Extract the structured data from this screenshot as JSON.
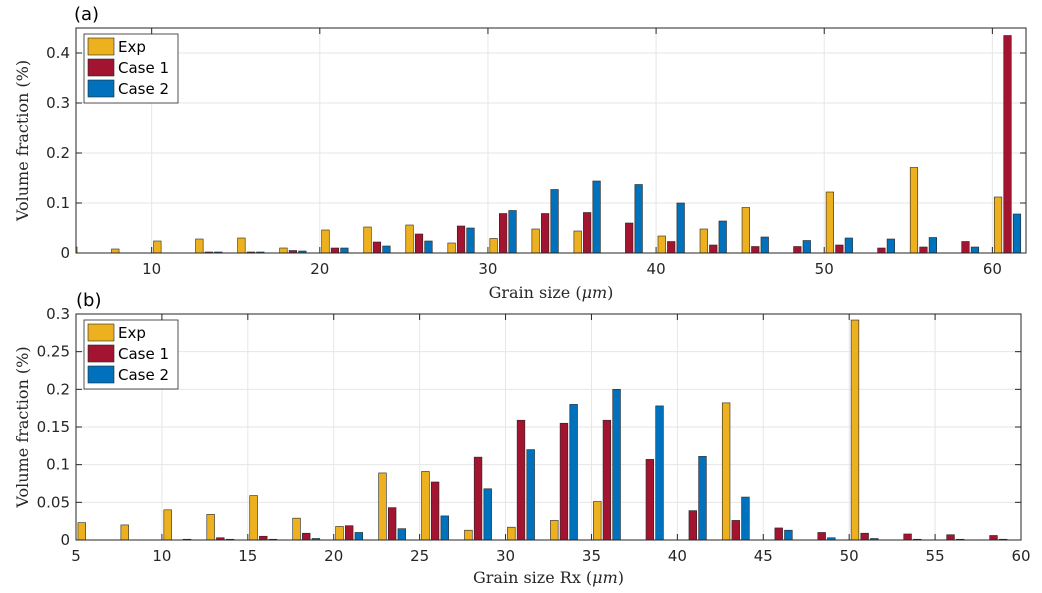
{
  "chart_data": [
    {
      "type": "bar",
      "panel_label": "(a)",
      "xlabel": "Grain size (μm)",
      "xlabel_parts": [
        "Grain size (",
        "μm",
        ")"
      ],
      "ylabel": "Volume fraction (%)",
      "ylabel_parts": [
        "Volume fraction (%)"
      ],
      "xlim": [
        5.5,
        62
      ],
      "ylim": [
        0,
        0.45
      ],
      "xticks": [
        10,
        20,
        30,
        40,
        50,
        60
      ],
      "yticks": [
        0,
        0.1,
        0.2,
        0.3,
        0.4
      ],
      "grid": true,
      "legend_position": "top-left",
      "bar_width": 0.45,
      "x": [
        5.9,
        8.4,
        10.9,
        13.4,
        15.9,
        18.4,
        20.9,
        23.4,
        25.9,
        28.4,
        30.9,
        33.4,
        35.9,
        38.4,
        40.9,
        43.4,
        45.9,
        48.4,
        50.9,
        53.4,
        55.9,
        58.4,
        60.9
      ],
      "series": [
        {
          "name": "Exp",
          "color": "#EDB120",
          "values": [
            0.012,
            0.008,
            0.024,
            0.028,
            0.03,
            0.01,
            0.046,
            0.052,
            0.056,
            0.02,
            0.029,
            0.048,
            0.044,
            0.0,
            0.034,
            0.048,
            0.091,
            0.0,
            0.122,
            0.0,
            0.171,
            0.0,
            0.112
          ]
        },
        {
          "name": "Case 1",
          "color": "#A2142F",
          "values": [
            0.0,
            0.0,
            0.0,
            0.002,
            0.002,
            0.005,
            0.01,
            0.022,
            0.038,
            0.054,
            0.079,
            0.079,
            0.081,
            0.06,
            0.023,
            0.016,
            0.013,
            0.013,
            0.016,
            0.01,
            0.012,
            0.023,
            0.435
          ]
        },
        {
          "name": "Case 2",
          "color": "#0072BD",
          "values": [
            0.0,
            0.0,
            0.0,
            0.002,
            0.002,
            0.004,
            0.01,
            0.014,
            0.024,
            0.05,
            0.085,
            0.127,
            0.144,
            0.137,
            0.1,
            0.064,
            0.032,
            0.025,
            0.03,
            0.028,
            0.031,
            0.012,
            0.078
          ]
        }
      ]
    },
    {
      "type": "bar",
      "panel_label": "(b)",
      "xlabel": "Grain size Rx (μm)",
      "xlabel_parts": [
        "Grain size Rx (",
        "μm",
        ")"
      ],
      "ylabel": "Volume fraction (%)",
      "ylabel_parts": [
        "Volume fraction (%)"
      ],
      "xlim": [
        5,
        60
      ],
      "ylim": [
        0,
        0.3
      ],
      "xticks": [
        5,
        10,
        15,
        20,
        25,
        30,
        35,
        40,
        45,
        50,
        55,
        60
      ],
      "yticks": [
        0,
        0.05,
        0.1,
        0.15,
        0.2,
        0.25,
        0.3
      ],
      "grid": true,
      "legend_position": "top-left",
      "bar_width": 0.45,
      "x": [
        5.9,
        8.4,
        10.9,
        13.4,
        15.9,
        18.4,
        20.9,
        23.4,
        25.9,
        28.4,
        30.9,
        33.4,
        35.9,
        38.4,
        40.9,
        43.4,
        45.9,
        48.4,
        50.9,
        53.4,
        55.9,
        58.4,
        60.9
      ],
      "series": [
        {
          "name": "Exp",
          "color": "#EDB120",
          "values": [
            0.023,
            0.02,
            0.04,
            0.034,
            0.059,
            0.029,
            0.018,
            0.089,
            0.091,
            0.013,
            0.017,
            0.026,
            0.051,
            0.0,
            0.0,
            0.182,
            0.0,
            0.0,
            0.292,
            0.0,
            0.0,
            0.0,
            0.0
          ]
        },
        {
          "name": "Case 1",
          "color": "#A2142F",
          "values": [
            0.0,
            0.0,
            0.0,
            0.003,
            0.005,
            0.009,
            0.019,
            0.043,
            0.077,
            0.11,
            0.159,
            0.155,
            0.159,
            0.107,
            0.039,
            0.026,
            0.016,
            0.01,
            0.009,
            0.008,
            0.007,
            0.006,
            0.025
          ]
        },
        {
          "name": "Case 2",
          "color": "#0072BD",
          "values": [
            0.0,
            0.0,
            0.001,
            0.001,
            0.001,
            0.002,
            0.01,
            0.015,
            0.032,
            0.068,
            0.12,
            0.18,
            0.2,
            0.178,
            0.111,
            0.057,
            0.013,
            0.003,
            0.002,
            0.001,
            0.001,
            0.001,
            0.0
          ]
        }
      ]
    }
  ]
}
